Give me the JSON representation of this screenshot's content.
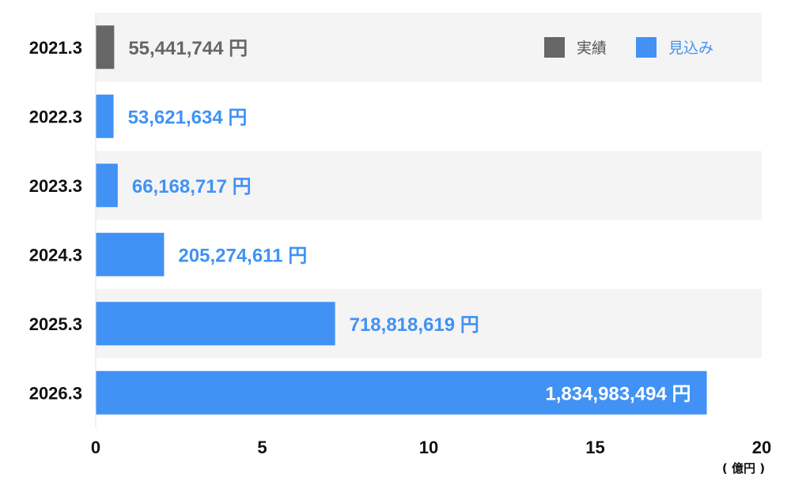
{
  "chart_data": {
    "type": "bar",
    "orientation": "horizontal",
    "categories": [
      "2021.3",
      "2022.3",
      "2023.3",
      "2024.3",
      "2025.3",
      "2026.3"
    ],
    "values": [
      55441744,
      53621634,
      66168717,
      205274611,
      718818619,
      1834983494
    ],
    "value_labels": [
      "55,441,744 円",
      "53,621,634 円",
      "66,168,717 円",
      "205,274,611 円",
      "718,818,619 円",
      "1,834,983,494 円"
    ],
    "bar_series": [
      "実績",
      "見込み",
      "見込み",
      "見込み",
      "見込み",
      "見込み"
    ],
    "legend": [
      {
        "name": "実績",
        "color": "#666666"
      },
      {
        "name": "見込み",
        "color": "#4192f4"
      }
    ],
    "legend_position": "top-right",
    "x_ticks": [
      0,
      5,
      10,
      15,
      20
    ],
    "x_unit_scale": 100000000,
    "xlim": [
      0,
      20
    ],
    "x_unit_label": "( 億円 )",
    "row_band_colors": [
      "#f4f4f4",
      "#ffffff"
    ]
  }
}
